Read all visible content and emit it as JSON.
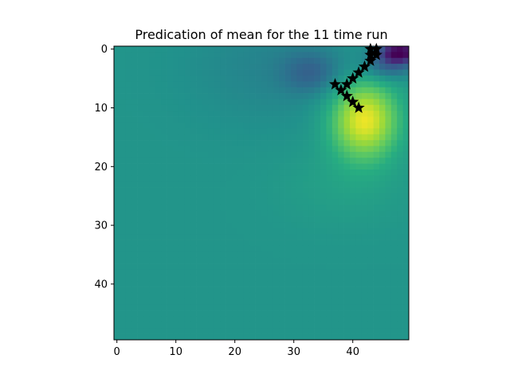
{
  "chart_data": {
    "type": "heatmap",
    "title": "Predication of mean for the 11 time run",
    "xlabel": "",
    "ylabel": "",
    "grid_size": [
      50,
      50
    ],
    "xlim": [
      -0.5,
      49.5
    ],
    "ylim": [
      49.5,
      -0.5
    ],
    "y_inverted": true,
    "x_ticks": [
      0,
      10,
      20,
      30,
      40
    ],
    "y_ticks": [
      0,
      10,
      20,
      30,
      40
    ],
    "colormap": "viridis",
    "background_value": 0.52,
    "features": [
      {
        "kind": "peak",
        "cx": 42,
        "cy": 12,
        "sx": 4.0,
        "sy": 4.6,
        "amp": 0.46
      },
      {
        "kind": "peak",
        "cx": 39,
        "cy": 23,
        "sx": 8,
        "sy": 5,
        "amp": 0.05
      },
      {
        "kind": "trough",
        "cx": 33,
        "cy": 4,
        "sx": 3.5,
        "sy": 2.5,
        "amp": 0.16
      },
      {
        "kind": "trough",
        "cx": 26,
        "cy": 3,
        "sx": 10,
        "sy": 7,
        "amp": 0.07
      },
      {
        "kind": "trough",
        "cx": 48,
        "cy": 0.5,
        "sx": 2.5,
        "sy": 1.3,
        "amp": 0.5
      },
      {
        "kind": "trough",
        "cx": 46,
        "cy": 3,
        "sx": 3,
        "sy": 1.6,
        "amp": 0.2
      }
    ],
    "markers": {
      "shape": "star",
      "color": "#000000",
      "points": [
        {
          "x": 43,
          "y": 0
        },
        {
          "x": 44,
          "y": 0
        },
        {
          "x": 43,
          "y": 1
        },
        {
          "x": 44,
          "y": 1
        },
        {
          "x": 43,
          "y": 2
        },
        {
          "x": 42,
          "y": 3
        },
        {
          "x": 41,
          "y": 4
        },
        {
          "x": 40,
          "y": 5
        },
        {
          "x": 39,
          "y": 6
        },
        {
          "x": 37,
          "y": 6
        },
        {
          "x": 38,
          "y": 7
        },
        {
          "x": 39,
          "y": 8
        },
        {
          "x": 40,
          "y": 9
        },
        {
          "x": 41,
          "y": 10
        }
      ]
    }
  }
}
